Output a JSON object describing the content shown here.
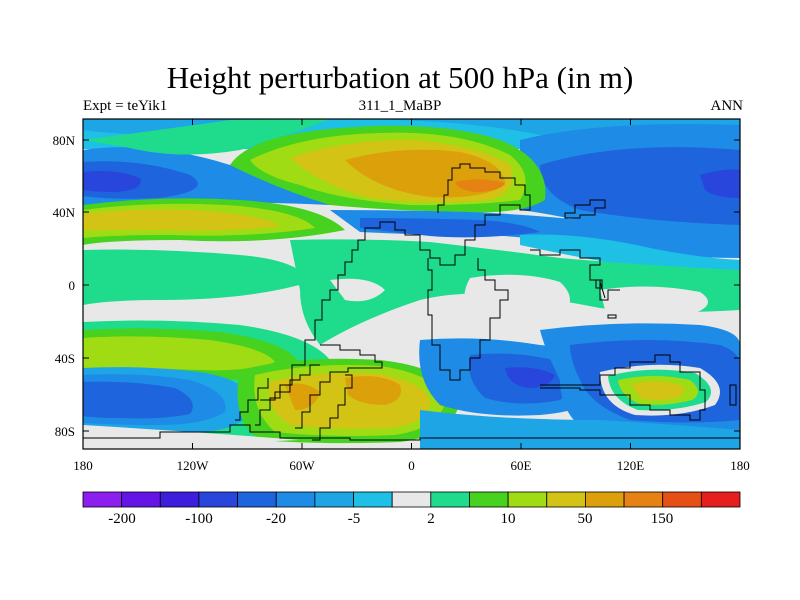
{
  "title": "Height perturbation at 500 hPa (in m)",
  "left_subtitle": "Expt = teYik1",
  "center_subtitle": "311_1_MaBP",
  "right_subtitle": "ANN",
  "map": {
    "x_ticks": [
      "180",
      "120W",
      "60W",
      "0",
      "60E",
      "120E",
      "180"
    ],
    "y_ticks": [
      "80N",
      "40N",
      "0",
      "40S",
      "80S"
    ]
  },
  "colors": {
    "background_neutral": "#e8e8e8",
    "coastline": "#000000"
  },
  "colorbar": {
    "colors": [
      "#8c1ef0",
      "#6414e6",
      "#3c1edc",
      "#2846dc",
      "#1e64dc",
      "#1e8ce6",
      "#1ea5e6",
      "#1ec0e6",
      "#e8e8e8",
      "#1edc8c",
      "#46d21e",
      "#a0dc14",
      "#d2c314",
      "#dca00a",
      "#e68214",
      "#e65014",
      "#e61e1e"
    ],
    "labels": [
      "-200",
      "-100",
      "-20",
      "-5",
      "2",
      "10",
      "50",
      "150"
    ]
  },
  "fields": [
    {
      "color": "#1ec0e6",
      "shape": "rect",
      "cx": 80,
      "cy": 7
    },
    {
      "color": "#1e8ce6",
      "shape": "blob",
      "cx": 6,
      "cy": 22
    },
    {
      "color": "#1e64dc",
      "shape": "blob",
      "cx": 2,
      "cy": 26
    },
    {
      "color": "#2846dc",
      "shape": "blob",
      "cx": -2,
      "cy": 28
    }
  ]
}
